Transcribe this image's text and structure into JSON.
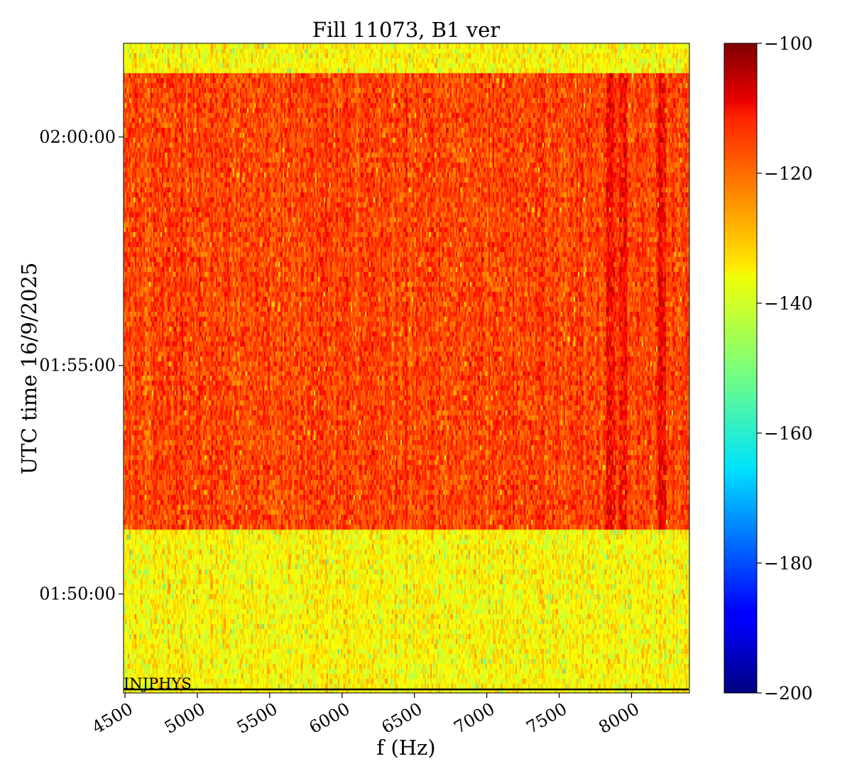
{
  "chart_data": {
    "type": "heatmap",
    "title": "Fill 11073, B1 ver",
    "xlabel": "f (Hz)",
    "ylabel": "UTC time 16/9/2025",
    "xlim": [
      4490,
      8400
    ],
    "x_ticks": [
      4500,
      5000,
      5500,
      6000,
      6500,
      7000,
      7500,
      8000
    ],
    "x_tick_labels": [
      "4500",
      "5000",
      "5500",
      "6000",
      "6500",
      "7000",
      "7500",
      "8000"
    ],
    "y_ticks": [
      "01:50:00",
      "01:55:00",
      "02:00:00"
    ],
    "y_range": [
      "01:47:50",
      "02:02:03"
    ],
    "colormap": "jet",
    "colorbar": {
      "min": -200,
      "max": -100,
      "ticks": [
        -200,
        -180,
        -160,
        -140,
        -120,
        -100
      ],
      "tick_labels": [
        "−200",
        "−180",
        "−160",
        "−140",
        "−120",
        "−100"
      ]
    },
    "regions": [
      {
        "from": "01:47:50",
        "to": "01:51:25",
        "level_db": -137,
        "spread_db": 4
      },
      {
        "from": "01:51:25",
        "to": "02:01:25",
        "level_db": -119,
        "spread_db": 4
      },
      {
        "from": "02:01:25",
        "to": "02:02:03",
        "level_db": -137,
        "spread_db": 4
      }
    ],
    "hot_bands_hz": [
      7850,
      7940,
      8200
    ],
    "annotation": {
      "text": "INJPHYS",
      "time": "01:47:45"
    }
  }
}
